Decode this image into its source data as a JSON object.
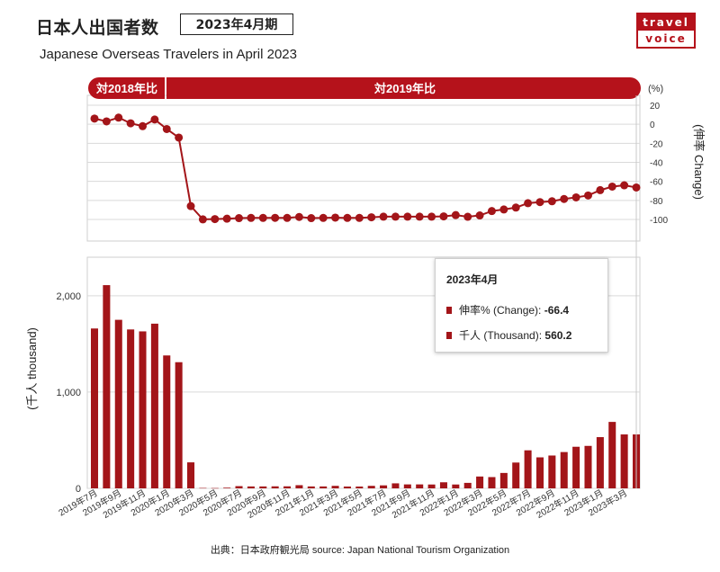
{
  "header": {
    "title": "日本人出国者数",
    "period": "2023年4月期",
    "subtitle": "Japanese Overseas Travelers in April 2023"
  },
  "logo": {
    "line1": "travel",
    "line2": "voice"
  },
  "colors": {
    "accent": "#b5121b",
    "bar": "#a31519",
    "line": "#a31519",
    "grid": "#d9d9d9"
  },
  "labels": {
    "pill_2018": "対2018年比",
    "pill_2019": "対2019年比",
    "percent_unit": "(%)",
    "right_axis": "(伸率 Change)",
    "left_axis": "(千人 thousand)"
  },
  "tooltip": {
    "title": "2023年4月",
    "change_label": "伸率% (Change):",
    "change_value": "-66.4",
    "thousand_label": "千人 (Thousand):",
    "thousand_value": "560.2"
  },
  "source": "出典：日本政府観光局  source: Japan National Tourism Organization",
  "chart_data": [
    {
      "type": "line",
      "ylabel": "(伸率 Change)",
      "ylim": [
        -100,
        20
      ],
      "yticks": [
        20,
        0,
        -20,
        -40,
        -60,
        -80,
        -100
      ],
      "x": [
        "2019年7月",
        "2019年8月",
        "2019年9月",
        "2019年10月",
        "2019年11月",
        "2019年12月",
        "2020年1月",
        "2020年2月",
        "2020年3月",
        "2020年4月",
        "2020年5月",
        "2020年6月",
        "2020年7月",
        "2020年8月",
        "2020年9月",
        "2020年10月",
        "2020年11月",
        "2020年12月",
        "2021年1月",
        "2021年2月",
        "2021年3月",
        "2021年4月",
        "2021年5月",
        "2021年6月",
        "2021年7月",
        "2021年8月",
        "2021年9月",
        "2021年10月",
        "2021年11月",
        "2021年12月",
        "2022年1月",
        "2022年2月",
        "2022年3月",
        "2022年4月",
        "2022年5月",
        "2022年6月",
        "2022年7月",
        "2022年8月",
        "2022年9月",
        "2022年10月",
        "2022年11月",
        "2022年12月",
        "2023年1月",
        "2023年2月",
        "2023年3月",
        "2023年4月"
      ],
      "values": [
        6,
        3,
        7,
        1,
        -2,
        5,
        -5,
        -14,
        -86,
        -99.9,
        -99.6,
        -99.2,
        -98.6,
        -98.4,
        -98.4,
        -98.3,
        -98.4,
        -97.4,
        -98.6,
        -98.4,
        -98.1,
        -98.4,
        -98.4,
        -97.7,
        -97.1,
        -97.1,
        -97.1,
        -97.1,
        -97.1,
        -96.8,
        -95.4,
        -97.2,
        -95.8,
        -91.2,
        -89.5,
        -87.5,
        -82.9,
        -81.8,
        -80.9,
        -78.5,
        -76.8,
        -74.8,
        -69.2,
        -65.5,
        -64.1,
        -66.4
      ],
      "annotations": [
        "対2018年比",
        "対2019年比"
      ]
    },
    {
      "type": "bar",
      "ylabel": "(千人 thousand)",
      "ylim": [
        0,
        2400
      ],
      "yticks": [
        0,
        1000,
        2000
      ],
      "categories": [
        "2019年7月",
        "2019年8月",
        "2019年9月",
        "2019年10月",
        "2019年11月",
        "2019年12月",
        "2020年1月",
        "2020年2月",
        "2020年3月",
        "2020年4月",
        "2020年5月",
        "2020年6月",
        "2020年7月",
        "2020年8月",
        "2020年9月",
        "2020年10月",
        "2020年11月",
        "2020年12月",
        "2021年1月",
        "2021年2月",
        "2021年3月",
        "2021年4月",
        "2021年5月",
        "2021年6月",
        "2021年7月",
        "2021年8月",
        "2021年9月",
        "2021年10月",
        "2021年11月",
        "2021年12月",
        "2022年1月",
        "2022年2月",
        "2022年3月",
        "2022年4月",
        "2022年5月",
        "2022年6月",
        "2022年7月",
        "2022年8月",
        "2022年9月",
        "2022年10月",
        "2022年11月",
        "2022年12月",
        "2023年1月",
        "2023年2月",
        "2023年3月",
        "2023年4月"
      ],
      "xtick_labels": [
        "2019年7月",
        "2019年9月",
        "2019年11月",
        "2020年1月",
        "2020年3月",
        "2020年5月",
        "2020年7月",
        "2020年9月",
        "2020年11月",
        "2021年1月",
        "2021年3月",
        "2021年5月",
        "2021年7月",
        "2021年9月",
        "2021年11月",
        "2022年1月",
        "2022年3月",
        "2022年5月",
        "2022年7月",
        "2022年9月",
        "2022年11月",
        "2023年1月",
        "2023年3月"
      ],
      "values": [
        1660,
        2110,
        1750,
        1650,
        1630,
        1710,
        1380,
        1310,
        270,
        4,
        3,
        7,
        23,
        20,
        20,
        21,
        21,
        33,
        20,
        20,
        26,
        19,
        19,
        26,
        31,
        52,
        41,
        41,
        40,
        63,
        40,
        57,
        123,
        117,
        160,
        268,
        395,
        322,
        341,
        377,
        432,
        441,
        532,
        690,
        560,
        560
      ]
    }
  ]
}
